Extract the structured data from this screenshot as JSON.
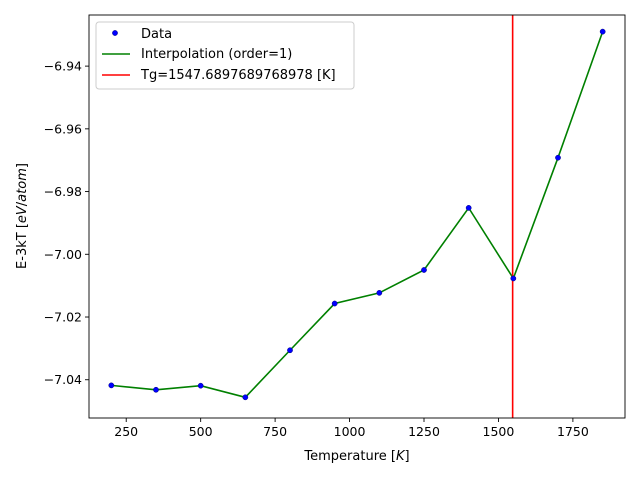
{
  "chart_data": {
    "type": "line",
    "xlabel": "Temperature [K]",
    "ylabel": "E-3kT [eV/atom]",
    "xlim": [
      125,
      1925
    ],
    "ylim": [
      -7.0522,
      -6.9237
    ],
    "x_ticks": [
      250,
      500,
      750,
      1000,
      1250,
      1500,
      1750
    ],
    "y_ticks": [
      -7.04,
      -7.02,
      -7.0,
      -6.98,
      -6.96,
      -6.94
    ],
    "x_tick_labels": [
      "250",
      "500",
      "750",
      "1000",
      "1250",
      "1500",
      "1750"
    ],
    "y_tick_labels": [
      "−7.04",
      "−7.02",
      "−7.00",
      "−6.98",
      "−6.96",
      "−6.94"
    ],
    "grid": false,
    "legend_position": "top-left",
    "x": [
      200,
      350,
      500,
      650,
      800,
      950,
      1100,
      1250,
      1400,
      1550,
      1700,
      1850
    ],
    "series": [
      {
        "name": "Data",
        "kind": "scatter",
        "color": "#0000ff",
        "values": [
          -7.0418,
          -7.0432,
          -7.0419,
          -7.0456,
          -7.0306,
          -7.0157,
          -7.0123,
          -7.005,
          -6.9852,
          -7.0077,
          -6.9692,
          -6.929
        ]
      },
      {
        "name": "Interpolation (order=1)",
        "kind": "line",
        "color": "#008000",
        "values": [
          -7.0418,
          -7.0432,
          -7.0419,
          -7.0456,
          -7.0306,
          -7.0157,
          -7.0123,
          -7.005,
          -6.9852,
          -7.0077,
          -6.9692,
          -6.929
        ]
      }
    ],
    "vline": {
      "name": "Tg=1547.6897689768978 [K]",
      "x": 1547.6897689768978,
      "color": "#ff0000"
    }
  }
}
